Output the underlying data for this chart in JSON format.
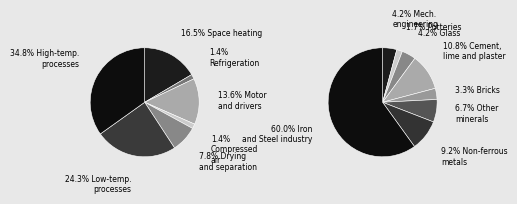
{
  "chart1": {
    "values": [
      16.5,
      1.4,
      13.6,
      1.4,
      7.8,
      24.3,
      34.8
    ],
    "colors": [
      "#1c1c1c",
      "#777777",
      "#aaaaaa",
      "#cccccc",
      "#888888",
      "#3a3a3a",
      "#0d0d0d"
    ],
    "labels": [
      "16.5% Space heating",
      "1.4%\nRefrigeration",
      "13.6% Motor\nand drivers",
      "1.4%\nCompressed\nair",
      "7.8% Drying\nand separation",
      "24.3% Low-temp.\nprocesses",
      "34.8% High-temp.\nprocesses"
    ],
    "startangle": 90
  },
  "chart2": {
    "values": [
      4.2,
      1.7,
      4.2,
      10.8,
      3.3,
      6.7,
      9.2,
      60.0
    ],
    "colors": [
      "#1c1c1c",
      "#cccccc",
      "#888888",
      "#aaaaaa",
      "#999999",
      "#555555",
      "#333333",
      "#0d0d0d"
    ],
    "labels": [
      "4.2% Mech.\nengineering",
      "1.7% Potteries",
      "4.2% Glass",
      "10.8% Cement,\nlime and plaster",
      "3.3% Bricks",
      "6.7% Other\nminerals",
      "9.2% Non-ferrous\nmetals",
      "60.0% Iron\nand Steel industry"
    ],
    "startangle": 90
  },
  "fontsize": 5.5,
  "bg_color": "#e8e8e8"
}
